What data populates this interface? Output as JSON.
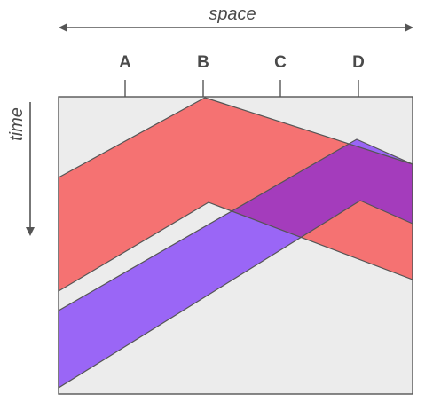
{
  "axes": {
    "horizontal_label": "space",
    "vertical_label": "time"
  },
  "points": [
    {
      "label": "A"
    },
    {
      "label": "B"
    },
    {
      "label": "C"
    },
    {
      "label": "D"
    }
  ],
  "colors": {
    "background": "#ececec",
    "frame": "#555555",
    "axis": "#555555",
    "red_band": "#f57272",
    "purple_band": "#9a66f6",
    "overlap": "#a43cbc"
  }
}
